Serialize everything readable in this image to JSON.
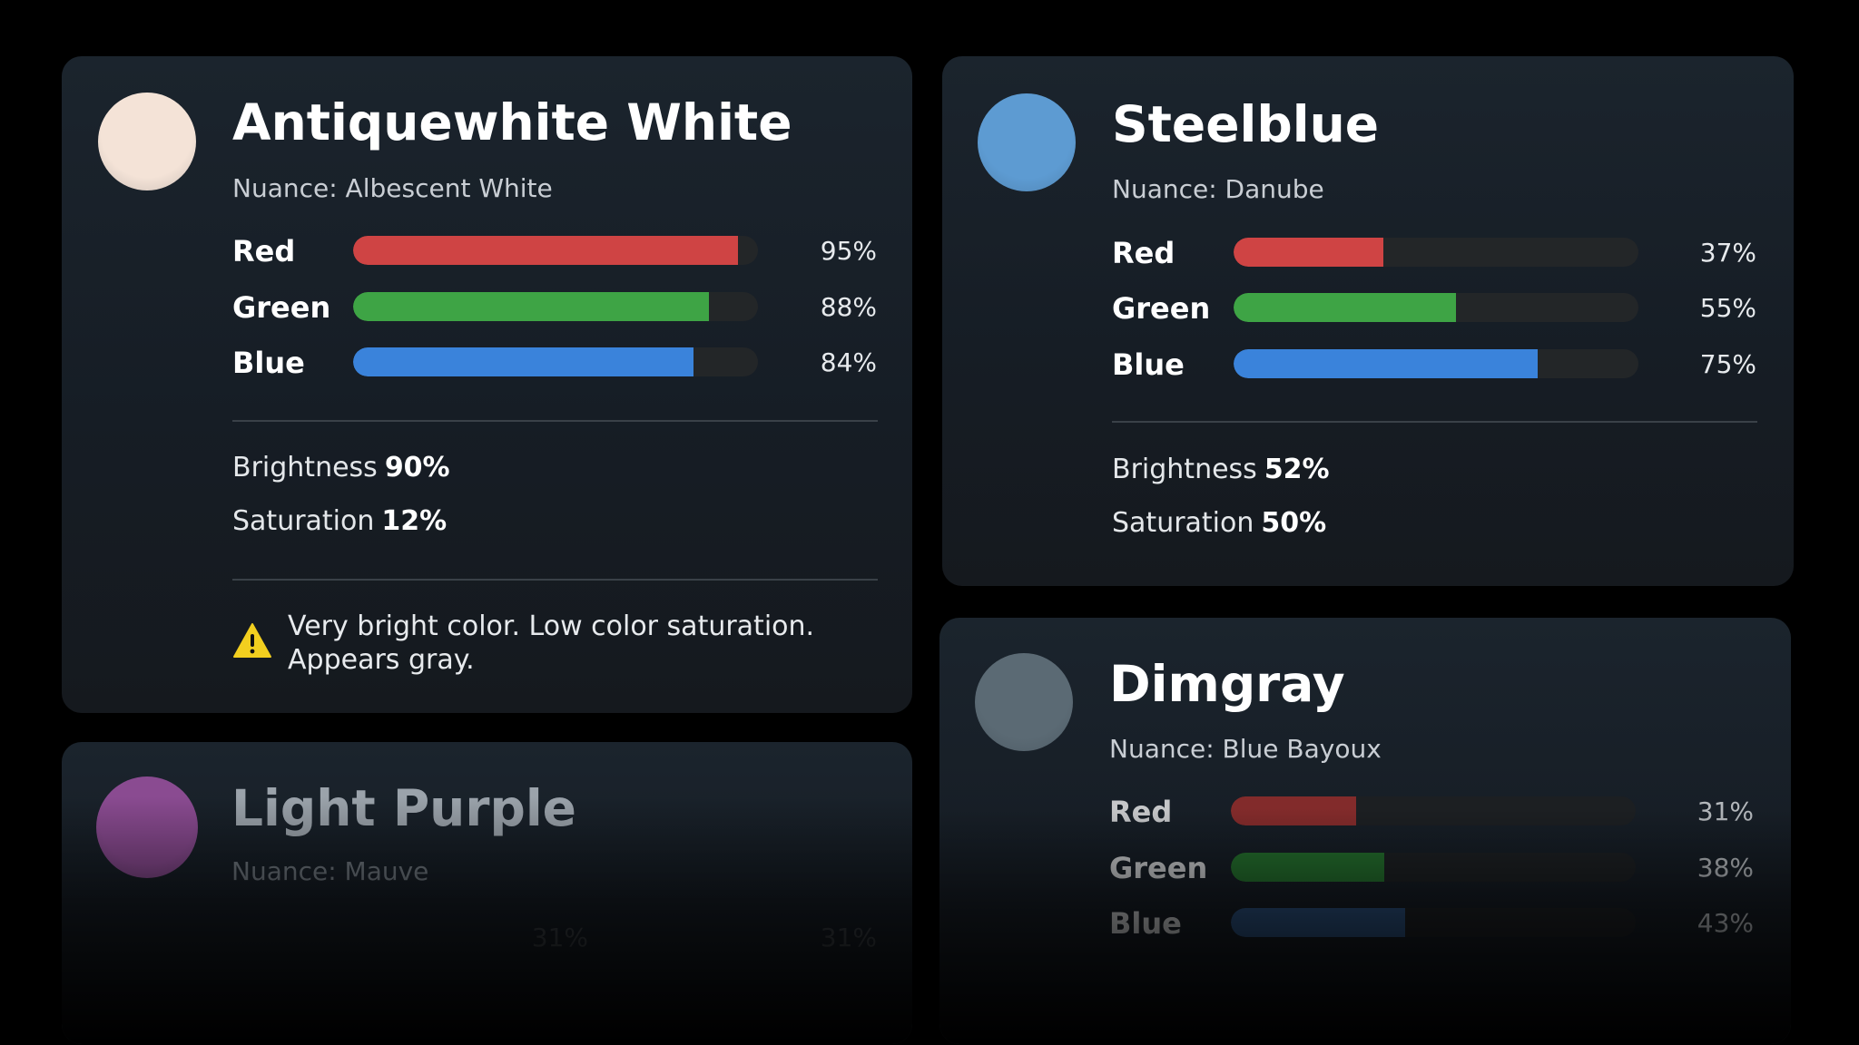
{
  "cards": [
    {
      "key": "antique",
      "title": "Antiquewhite White",
      "nuance": "Nuance: Albescent White",
      "swatch_color": "#f4e3d7",
      "bars": [
        {
          "label": "Red",
          "value": 95,
          "pct": "95%",
          "color": "#cf4444"
        },
        {
          "label": "Green",
          "value": 88,
          "pct": "88%",
          "color": "#3ea445"
        },
        {
          "label": "Blue",
          "value": 84,
          "pct": "84%",
          "color": "#3a83db"
        }
      ],
      "brightness_label": "Brightness",
      "brightness_value": "90%",
      "saturation_label": "Saturation",
      "saturation_value": "12%",
      "warning_text": "Very bright color. Low color saturation. Appears gray."
    },
    {
      "key": "steel",
      "title": "Steelblue",
      "nuance": "Nuance: Danube",
      "swatch_color": "#5d9bd2",
      "bars": [
        {
          "label": "Red",
          "value": 37,
          "pct": "37%",
          "color": "#cf4444"
        },
        {
          "label": "Green",
          "value": 55,
          "pct": "55%",
          "color": "#3ea445"
        },
        {
          "label": "Blue",
          "value": 75,
          "pct": "75%",
          "color": "#3a83db"
        }
      ],
      "brightness_label": "Brightness",
      "brightness_value": "52%",
      "saturation_label": "Saturation",
      "saturation_value": "50%"
    },
    {
      "key": "dim",
      "title": "Dimgray",
      "nuance": "Nuance: Blue Bayoux",
      "swatch_color": "#5b6a74",
      "bars": [
        {
          "label": "Red",
          "value": 31,
          "pct": "31%",
          "color": "#822b2b"
        },
        {
          "label": "Green",
          "value": 38,
          "pct": "38%",
          "color": "#236b2c"
        },
        {
          "label": "Blue",
          "value": 43,
          "pct": "43%",
          "color": "#2a4d78"
        }
      ]
    },
    {
      "key": "purple",
      "title": "Light Purple",
      "nuance": "Nuance: Mauve",
      "swatch_color": "#8a4b91",
      "pct_left": "31%",
      "pct_right": "31%"
    }
  ]
}
